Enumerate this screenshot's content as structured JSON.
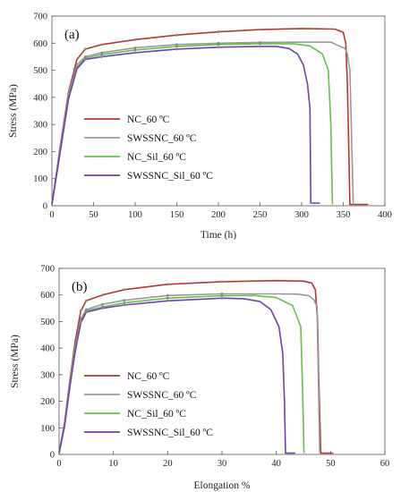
{
  "chart_data": [
    {
      "type": "line",
      "panel_label": "(a)",
      "xlabel": "Time (h)",
      "ylabel": "Stress (MPa)",
      "xlim": [
        0,
        400
      ],
      "ylim": [
        0,
        700
      ],
      "x_ticks": [
        "0",
        "50",
        "100",
        "150",
        "200",
        "250",
        "300",
        "350",
        "400"
      ],
      "y_ticks": [
        "0",
        "100",
        "200",
        "300",
        "400",
        "500",
        "600",
        "700"
      ],
      "legend_position": "lower-left",
      "series": [
        {
          "name": "NC_60 ºC",
          "color": "#b23a2b",
          "x": [
            0,
            10,
            20,
            30,
            40,
            60,
            100,
            150,
            200,
            250,
            300,
            340,
            350,
            353,
            355,
            356,
            358,
            380
          ],
          "y": [
            5,
            220,
            420,
            540,
            578,
            595,
            613,
            630,
            642,
            650,
            654,
            652,
            640,
            600,
            450,
            300,
            5,
            5
          ]
        },
        {
          "name": "SWSSNC_60 ºC",
          "color": "#999999",
          "x": [
            0,
            10,
            20,
            30,
            40,
            60,
            100,
            150,
            200,
            250,
            300,
            335,
            345,
            352,
            355,
            358,
            362
          ],
          "y": [
            5,
            215,
            410,
            520,
            550,
            565,
            583,
            595,
            600,
            603,
            604,
            604,
            590,
            580,
            560,
            500,
            5
          ]
        },
        {
          "name": "NC_Sil_60 ºC",
          "color": "#66c04a",
          "x": [
            0,
            10,
            20,
            30,
            40,
            60,
            100,
            150,
            200,
            250,
            290,
            310,
            325,
            332,
            335,
            336,
            337
          ],
          "y": [
            5,
            200,
            400,
            510,
            545,
            558,
            575,
            588,
            595,
            598,
            598,
            590,
            560,
            500,
            300,
            150,
            5
          ]
        },
        {
          "name": "SWSSNC_Sil_60 ºC",
          "color": "#7040b0",
          "x": [
            0,
            10,
            20,
            30,
            40,
            60,
            100,
            150,
            200,
            250,
            270,
            285,
            295,
            302,
            307,
            310,
            311,
            322
          ],
          "y": [
            5,
            200,
            395,
            505,
            540,
            550,
            565,
            578,
            585,
            588,
            588,
            580,
            560,
            520,
            450,
            360,
            10,
            10
          ]
        }
      ]
    },
    {
      "type": "line",
      "panel_label": "(b)",
      "xlabel": "Elongation %",
      "ylabel": "Stress (MPa)",
      "xlim": [
        0,
        60
      ],
      "ylim": [
        0,
        700
      ],
      "x_ticks": [
        "0",
        "10",
        "20",
        "30",
        "40",
        "50",
        "60"
      ],
      "y_ticks": [
        "0",
        "100",
        "200",
        "300",
        "400",
        "500",
        "600",
        "700"
      ],
      "legend_position": "lower-left",
      "series": [
        {
          "name": "NC_60 ºC",
          "color": "#b23a2b",
          "x": [
            0,
            1,
            2,
            3,
            4,
            5,
            8,
            12,
            20,
            30,
            40,
            45,
            46.5,
            47.2,
            47.6,
            47.8,
            48.2,
            50.5
          ],
          "y": [
            5,
            120,
            280,
            430,
            540,
            578,
            600,
            620,
            640,
            650,
            654,
            652,
            645,
            620,
            500,
            300,
            5,
            5
          ]
        },
        {
          "name": "SWSSNC_60 ºC",
          "color": "#999999",
          "x": [
            0,
            1,
            2,
            3,
            4,
            5,
            8,
            12,
            20,
            30,
            40,
            44,
            46,
            47,
            47.5,
            48
          ],
          "y": [
            5,
            115,
            270,
            410,
            510,
            545,
            565,
            580,
            598,
            604,
            604,
            603,
            597,
            580,
            555,
            5
          ]
        },
        {
          "name": "NC_Sil_60 ºC",
          "color": "#66c04a",
          "x": [
            0,
            1,
            2,
            3,
            4,
            5,
            8,
            12,
            20,
            30,
            36,
            40,
            43,
            44.5,
            44.9,
            45.1
          ],
          "y": [
            5,
            110,
            260,
            400,
            500,
            540,
            555,
            570,
            588,
            597,
            598,
            590,
            560,
            480,
            200,
            5
          ]
        },
        {
          "name": "SWSSNC_Sil_60 ºC",
          "color": "#7040b0",
          "x": [
            0,
            1,
            2,
            3,
            4,
            5,
            8,
            12,
            20,
            30,
            34,
            37,
            39,
            40.5,
            41.2,
            41.5,
            41.7,
            43.5
          ],
          "y": [
            5,
            105,
            255,
            390,
            495,
            535,
            550,
            562,
            578,
            588,
            586,
            575,
            545,
            480,
            380,
            200,
            5,
            5
          ]
        }
      ]
    }
  ]
}
